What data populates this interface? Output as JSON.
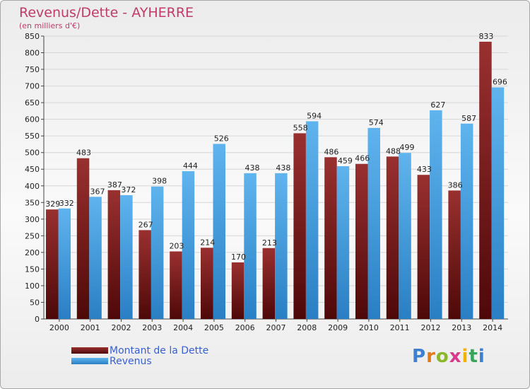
{
  "header": {
    "title": "Revenus/Dette - AYHERRE",
    "subtitle": "(en milliers d'€)"
  },
  "legend": {
    "items": [
      {
        "label": "Montant de la Dette",
        "color": "#7a1f1f"
      },
      {
        "label": "Revenus",
        "color": "#3d9bdf"
      }
    ]
  },
  "logo": {
    "letters": [
      {
        "ch": "P",
        "color": "#3d7fd0"
      },
      {
        "ch": "r",
        "color": "#e07a1a"
      },
      {
        "ch": "o",
        "color": "#8ab82a"
      },
      {
        "ch": "x",
        "color": "#d93a8c"
      },
      {
        "ch": "i",
        "color": "#f0b400"
      },
      {
        "ch": "t",
        "color": "#3aa55a"
      },
      {
        "ch": "i",
        "color": "#3d7fd0"
      }
    ]
  },
  "chart_data": {
    "type": "bar",
    "categories": [
      "2000",
      "2001",
      "2002",
      "2003",
      "2004",
      "2005",
      "2006",
      "2007",
      "2008",
      "2009",
      "2010",
      "2011",
      "2012",
      "2013",
      "2014"
    ],
    "series": [
      {
        "name": "Montant de la Dette",
        "color": "#7a1f1f",
        "values": [
          329,
          483,
          387,
          267,
          203,
          214,
          170,
          213,
          558,
          486,
          466,
          488,
          433,
          386,
          833
        ]
      },
      {
        "name": "Revenus",
        "color": "#3d9bdf",
        "values": [
          332,
          367,
          372,
          398,
          444,
          526,
          438,
          438,
          594,
          459,
          574,
          499,
          627,
          587,
          696
        ]
      }
    ],
    "ylim": [
      0,
      850
    ],
    "yticks": [
      0,
      50,
      100,
      150,
      200,
      250,
      300,
      350,
      400,
      450,
      500,
      550,
      600,
      650,
      700,
      750,
      800,
      850
    ],
    "grid": true
  }
}
